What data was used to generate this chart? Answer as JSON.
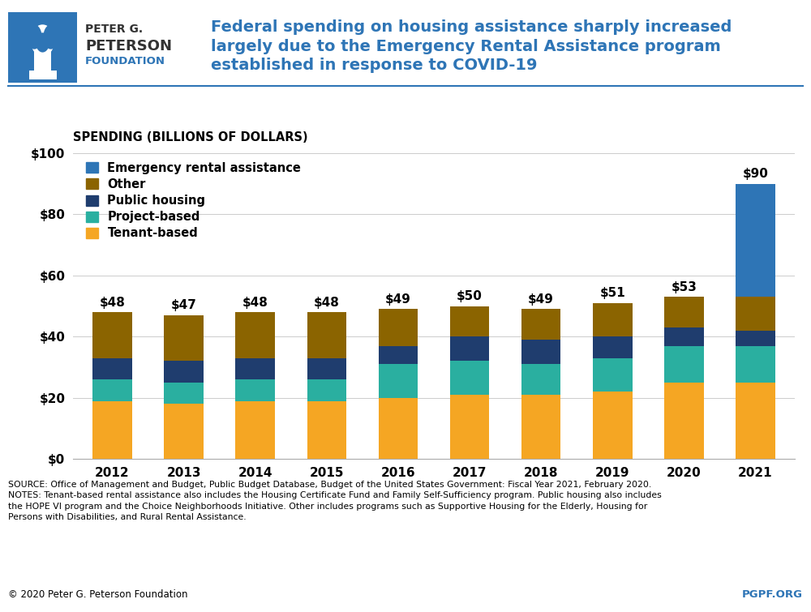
{
  "years": [
    2012,
    2013,
    2014,
    2015,
    2016,
    2017,
    2018,
    2019,
    2020,
    2021
  ],
  "totals": [
    48,
    47,
    48,
    48,
    49,
    50,
    49,
    51,
    53,
    90
  ],
  "tenant_based": [
    19,
    18,
    19,
    19,
    20,
    21,
    21,
    22,
    25,
    25
  ],
  "project_based": [
    7,
    7,
    7,
    7,
    11,
    11,
    10,
    11,
    12,
    12
  ],
  "public_housing": [
    7,
    7,
    7,
    7,
    6,
    8,
    8,
    7,
    6,
    5
  ],
  "other": [
    15,
    15,
    15,
    15,
    12,
    10,
    10,
    11,
    10,
    11
  ],
  "emergency": [
    0,
    0,
    0,
    0,
    0,
    0,
    0,
    0,
    0,
    37
  ],
  "colors": {
    "tenant_based": "#F5A623",
    "project_based": "#2AAFA0",
    "public_housing": "#1F3D6E",
    "other": "#8B6400",
    "emergency": "#2E75B6"
  },
  "ylim": [
    0,
    100
  ],
  "yticks": [
    0,
    20,
    40,
    60,
    80,
    100
  ],
  "title_line1": "Federal spending on housing assistance sharply increased",
  "title_line2": "largely due to the Emergency Rental Assistance program",
  "title_line3": "established in response to COVID-19",
  "title_color": "#2E75B6",
  "ylabel": "Spending (Billions of Dollars)",
  "bar_width": 0.55,
  "copyright": "© 2020 Peter G. Peterson Foundation",
  "pgpf": "PGPF.ORG",
  "pgpf_color": "#2E75B6"
}
